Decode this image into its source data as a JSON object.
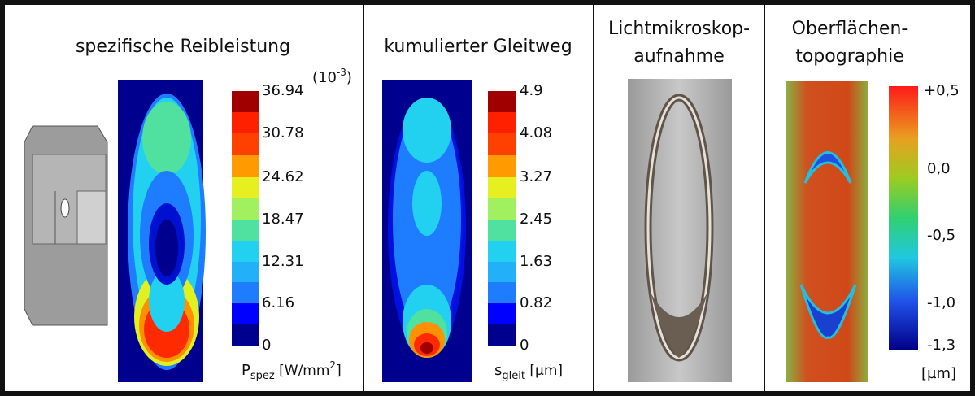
{
  "panels": [
    {
      "title": "spezifische Reibleistung",
      "scale_factor": {
        "open": "(10",
        "exponent": "-3",
        "close": ")"
      },
      "colorbar": {
        "ticks": [
          "36.94",
          "30.78",
          "24.62",
          "18.47",
          "12.31",
          "6.16",
          "0"
        ],
        "label": {
          "symbol": "P",
          "subscript": "spez",
          "unit": " [W/mm",
          "superscript": "2",
          "close": "]"
        }
      }
    },
    {
      "title": "kumulierter Gleitweg",
      "colorbar": {
        "ticks": [
          "4.9",
          "4.08",
          "3.27",
          "2.45",
          "1.63",
          "0.82",
          "0"
        ],
        "label": {
          "symbol": "s",
          "subscript": "gleit",
          "unit": " [µm]"
        }
      }
    },
    {
      "title_lines": [
        "Lichtmikroskop-",
        "aufnahme"
      ]
    },
    {
      "title_lines": [
        "Oberflächen-",
        "topographie"
      ],
      "colorbar": {
        "ticks": [
          "+0,5",
          "0,0",
          "-0,5",
          "-1,0",
          "-1,3"
        ],
        "label": "[µm]"
      }
    }
  ]
}
